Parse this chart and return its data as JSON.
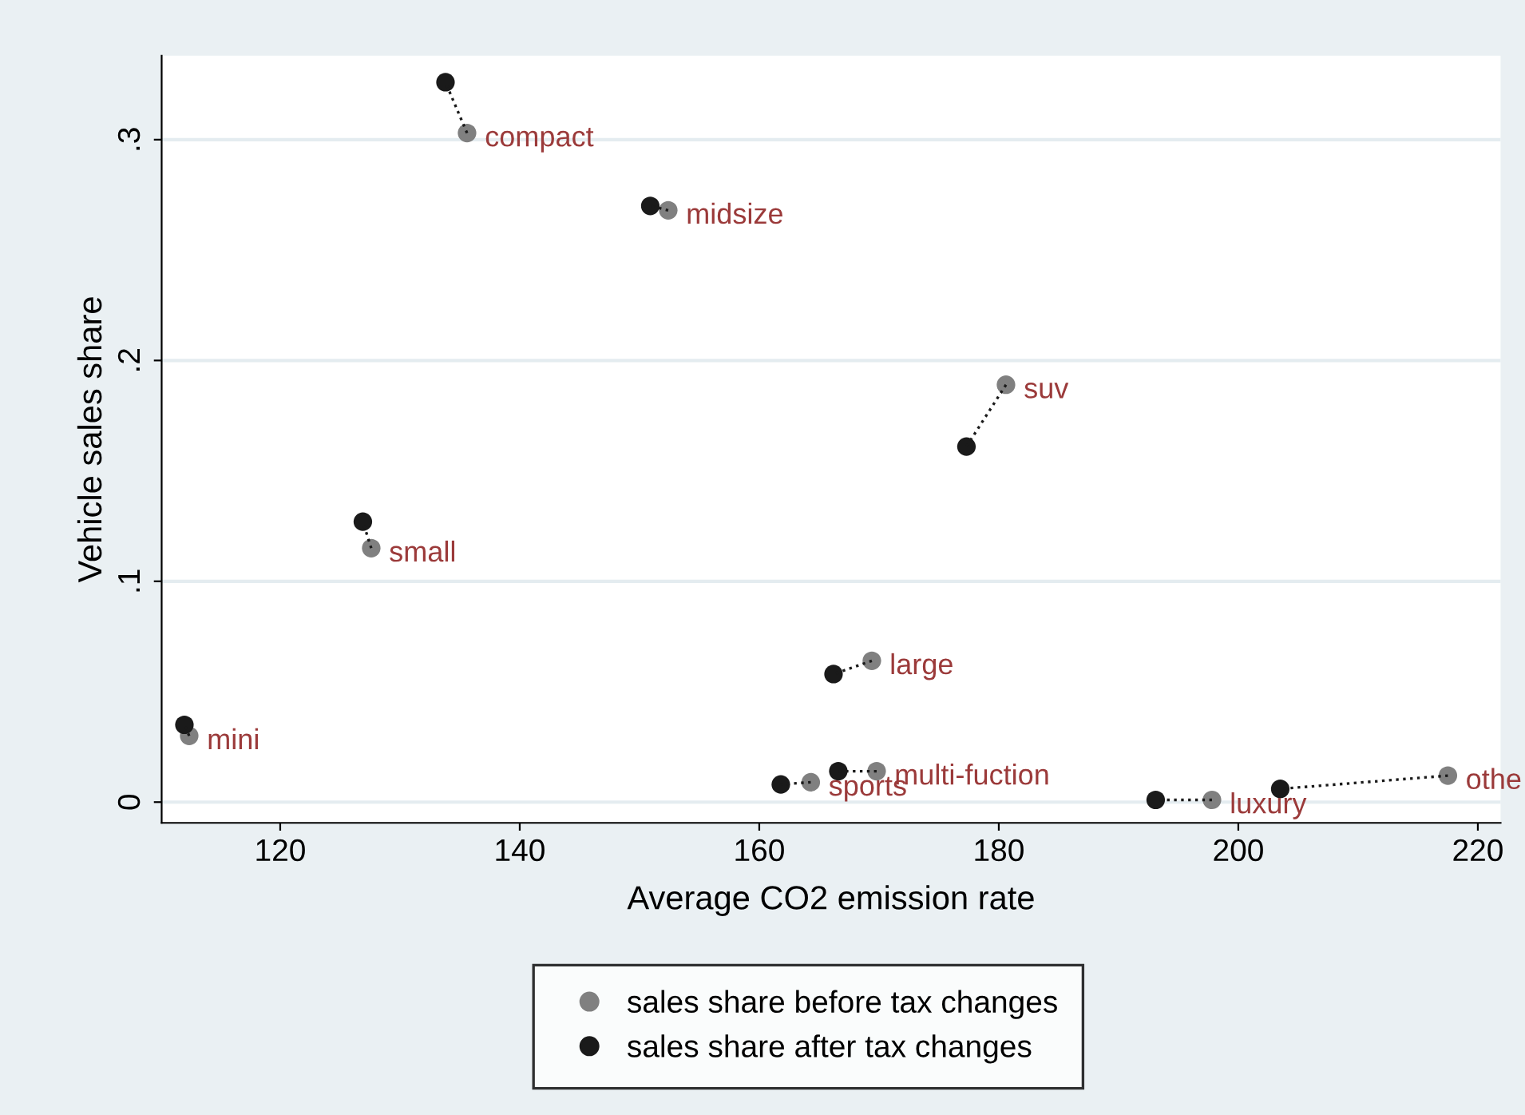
{
  "chart_data": {
    "type": "scatter",
    "xlabel": "Average CO2 emission rate",
    "ylabel": "Vehicle sales share",
    "xlim": [
      110.1,
      221.9
    ],
    "ylim": [
      -0.0094,
      0.338
    ],
    "xticks": [
      120,
      140,
      160,
      180,
      200,
      220
    ],
    "yticks": [
      0,
      {
        "value": 0.1,
        "label": ".1"
      },
      {
        "value": 0.2,
        "label": ".2"
      },
      {
        "value": 0.3,
        "label": ".3"
      }
    ],
    "grid": "y",
    "legend": "bottom",
    "marker": "circle",
    "series": [
      {
        "name": "sales share before tax changes",
        "color": "#808080",
        "x": [
          135.6,
          152.4,
          180.6,
          127.6,
          112.4,
          169.4,
          169.8,
          164.3,
          197.8,
          217.5
        ],
        "values": [
          0.303,
          0.268,
          0.189,
          0.115,
          0.03,
          0.064,
          0.014,
          0.009,
          0.001,
          0.012
        ]
      },
      {
        "name": "sales share after tax changes",
        "color": "#1a1a1a",
        "x": [
          133.8,
          150.9,
          177.3,
          126.9,
          112.0,
          166.2,
          166.6,
          161.8,
          193.1,
          203.5
        ],
        "values": [
          0.326,
          0.27,
          0.161,
          0.127,
          0.035,
          0.058,
          0.014,
          0.008,
          0.001,
          0.006
        ]
      },
      {
        "type": "line",
        "color": "#1a1a1a",
        "line_style": "dotted",
        "marker": "none",
        "x": [
          135.6,
          133.8
        ],
        "values": [
          0.303,
          0.326
        ]
      },
      {
        "type": "line",
        "color": "#1a1a1a",
        "line_style": "dotted",
        "marker": "none",
        "x": [
          152.4,
          150.9
        ],
        "values": [
          0.268,
          0.27
        ]
      },
      {
        "type": "line",
        "color": "#1a1a1a",
        "line_style": "dotted",
        "marker": "none",
        "x": [
          180.6,
          177.3
        ],
        "values": [
          0.189,
          0.161
        ]
      },
      {
        "type": "line",
        "color": "#1a1a1a",
        "line_style": "dotted",
        "marker": "none",
        "x": [
          127.6,
          126.9
        ],
        "values": [
          0.115,
          0.127
        ]
      },
      {
        "type": "line",
        "color": "#1a1a1a",
        "line_style": "dotted",
        "marker": "none",
        "x": [
          112.4,
          112.0
        ],
        "values": [
          0.03,
          0.035
        ]
      },
      {
        "type": "line",
        "color": "#1a1a1a",
        "line_style": "dotted",
        "marker": "none",
        "x": [
          169.4,
          166.2
        ],
        "values": [
          0.064,
          0.058
        ]
      },
      {
        "type": "line",
        "color": "#1a1a1a",
        "line_style": "dotted",
        "marker": "none",
        "x": [
          169.8,
          166.6
        ],
        "values": [
          0.014,
          0.014
        ]
      },
      {
        "type": "line",
        "color": "#1a1a1a",
        "line_style": "dotted",
        "marker": "none",
        "x": [
          164.3,
          161.8
        ],
        "values": [
          0.009,
          0.008
        ]
      },
      {
        "type": "line",
        "color": "#1a1a1a",
        "line_style": "dotted",
        "marker": "none",
        "x": [
          197.8,
          193.1
        ],
        "values": [
          0.001,
          0.001
        ]
      },
      {
        "type": "line",
        "color": "#1a1a1a",
        "line_style": "dotted",
        "marker": "none",
        "x": [
          217.5,
          203.5
        ],
        "values": [
          0.012,
          0.006
        ]
      }
    ],
    "annotations": [
      {
        "text": "compact",
        "x": 135.6,
        "y": 0.303
      },
      {
        "text": "midsize",
        "x": 152.4,
        "y": 0.268
      },
      {
        "text": "suv",
        "x": 180.6,
        "y": 0.189
      },
      {
        "text": "small",
        "x": 127.6,
        "y": 0.115
      },
      {
        "text": "mini",
        "x": 112.4,
        "y": 0.03
      },
      {
        "text": "large",
        "x": 169.4,
        "y": 0.064
      },
      {
        "text": "multi-fuction",
        "x": 169.8,
        "y": 0.014
      },
      {
        "text": "sports",
        "x": 164.3,
        "y": 0.009
      },
      {
        "text": "luxury",
        "x": 197.8,
        "y": 0.001
      },
      {
        "text": "othe",
        "x": 217.5,
        "y": 0.012
      }
    ]
  }
}
